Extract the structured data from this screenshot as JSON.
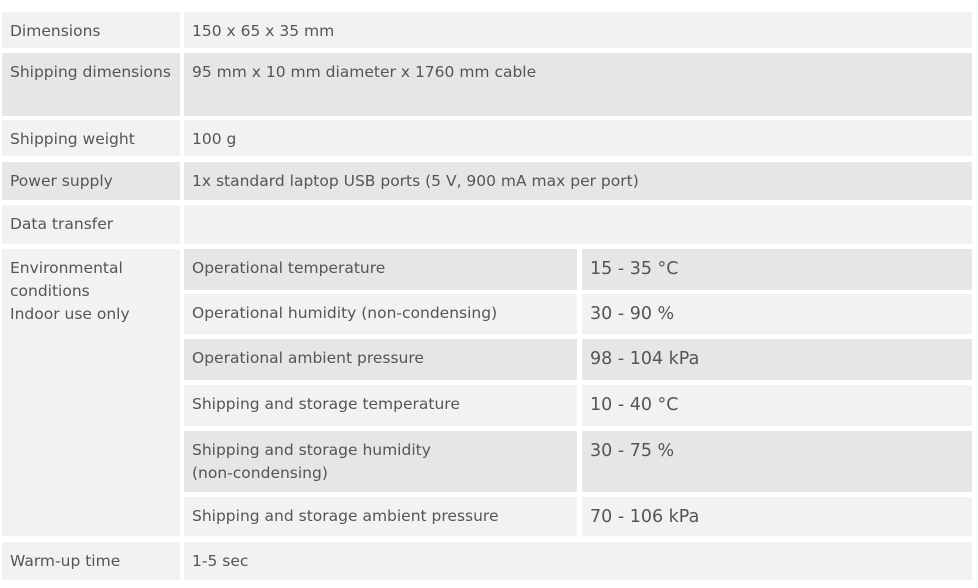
{
  "table": {
    "rows": [
      {
        "label": "Dimensions",
        "value": "150 x 65 x 35 mm"
      },
      {
        "label": "Shipping dimensions",
        "value": "95 mm x 10 mm diameter x 1760 mm cable"
      },
      {
        "label": "Shipping weight",
        "value": "100 g"
      },
      {
        "label": "Power supply",
        "value": "1x standard laptop USB ports (5 V, 900 mA max per port)"
      },
      {
        "label": "Data transfer"
      },
      {
        "label_lines": [
          "Environmental",
          "conditions",
          "Indoor use only"
        ],
        "subrows": [
          {
            "label": "Operational temperature",
            "value": "15 - 35 °C"
          },
          {
            "label": "Operational humidity (non-condensing)",
            "value": "30 - 90 %"
          },
          {
            "label": "Operational ambient pressure",
            "value": "98 - 104 kPa"
          },
          {
            "label": "Shipping and storage temperature",
            "value": "10 - 40 °C"
          },
          {
            "label_lines": [
              "Shipping and storage humidity",
              "(non-condensing)"
            ],
            "value": "30 - 75 %"
          },
          {
            "label": "Shipping and storage ambient pressure",
            "value": "70 - 106 kPa"
          }
        ]
      },
      {
        "label": "Warm-up time",
        "value": "1-5 sec"
      }
    ]
  }
}
